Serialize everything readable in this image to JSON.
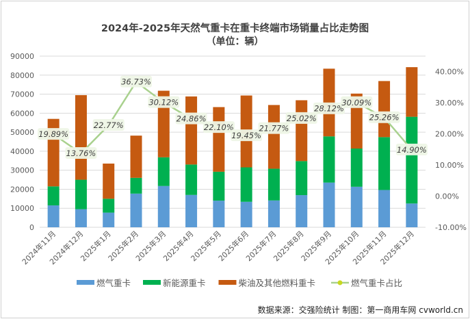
{
  "chart_data": {
    "type": "bar",
    "stacked": true,
    "title": "2024年-2025年天然气重卡在重卡终端市场销量占比走势图",
    "subtitle": "（单位：辆）",
    "categories": [
      "2024年11月",
      "2024年12月",
      "2025年1月",
      "2025年2月",
      "2025年3月",
      "2025年4月",
      "2025年5月",
      "2025年6月",
      "2025年7月",
      "2025年8月",
      "2025年9月",
      "2025年10月",
      "2025年11月",
      "2025年12月"
    ],
    "series": [
      {
        "name": "燃气重卡",
        "type": "bar",
        "axis": "left",
        "color": "#5b9bd5",
        "values": [
          11500,
          9500,
          7700,
          17700,
          21700,
          17000,
          14000,
          13400,
          14100,
          16900,
          23500,
          21300,
          19600,
          12500
        ]
      },
      {
        "name": "新能源重卡",
        "type": "bar",
        "axis": "left",
        "color": "#00b050",
        "values": [
          10000,
          15500,
          7300,
          8300,
          15100,
          16000,
          15200,
          18100,
          16700,
          17900,
          24300,
          20100,
          27800,
          45600
        ]
      },
      {
        "name": "柴油及其他燃料重卡",
        "type": "bar",
        "axis": "left",
        "color": "#c55a11",
        "values": [
          35500,
          44500,
          18500,
          22200,
          35000,
          35800,
          34000,
          37800,
          33500,
          32000,
          35600,
          28900,
          29500,
          26100
        ]
      },
      {
        "name": "燃气重卡占比",
        "type": "line",
        "axis": "right",
        "color": "#a9d18e",
        "values": [
          19.89,
          13.76,
          22.77,
          36.73,
          30.12,
          24.86,
          22.1,
          19.45,
          21.77,
          25.02,
          28.12,
          30.09,
          25.26,
          14.9
        ],
        "labels": [
          "19.89%",
          "13.76%",
          "22.77%",
          "36.73%",
          "30.12%",
          "24.86%",
          "22.10%",
          "19.45%",
          "21.77%",
          "25.02%",
          "28.12%",
          "30.09%",
          "25.26%",
          "14.90%"
        ]
      }
    ],
    "ylim": [
      0,
      90000
    ],
    "yticks": [
      "0",
      "10000",
      "20000",
      "30000",
      "40000",
      "50000",
      "60000",
      "70000",
      "80000",
      "90000"
    ],
    "y2lim": [
      -10,
      45
    ],
    "y2ticks": [
      "-10.00%",
      "0.00%",
      "10.00%",
      "20.00%",
      "30.00%",
      "40.00%"
    ],
    "grid": true,
    "legend": "bottom"
  },
  "source": "数据来源：交强险统计  制图：第一商用车网 cvworld.cn"
}
